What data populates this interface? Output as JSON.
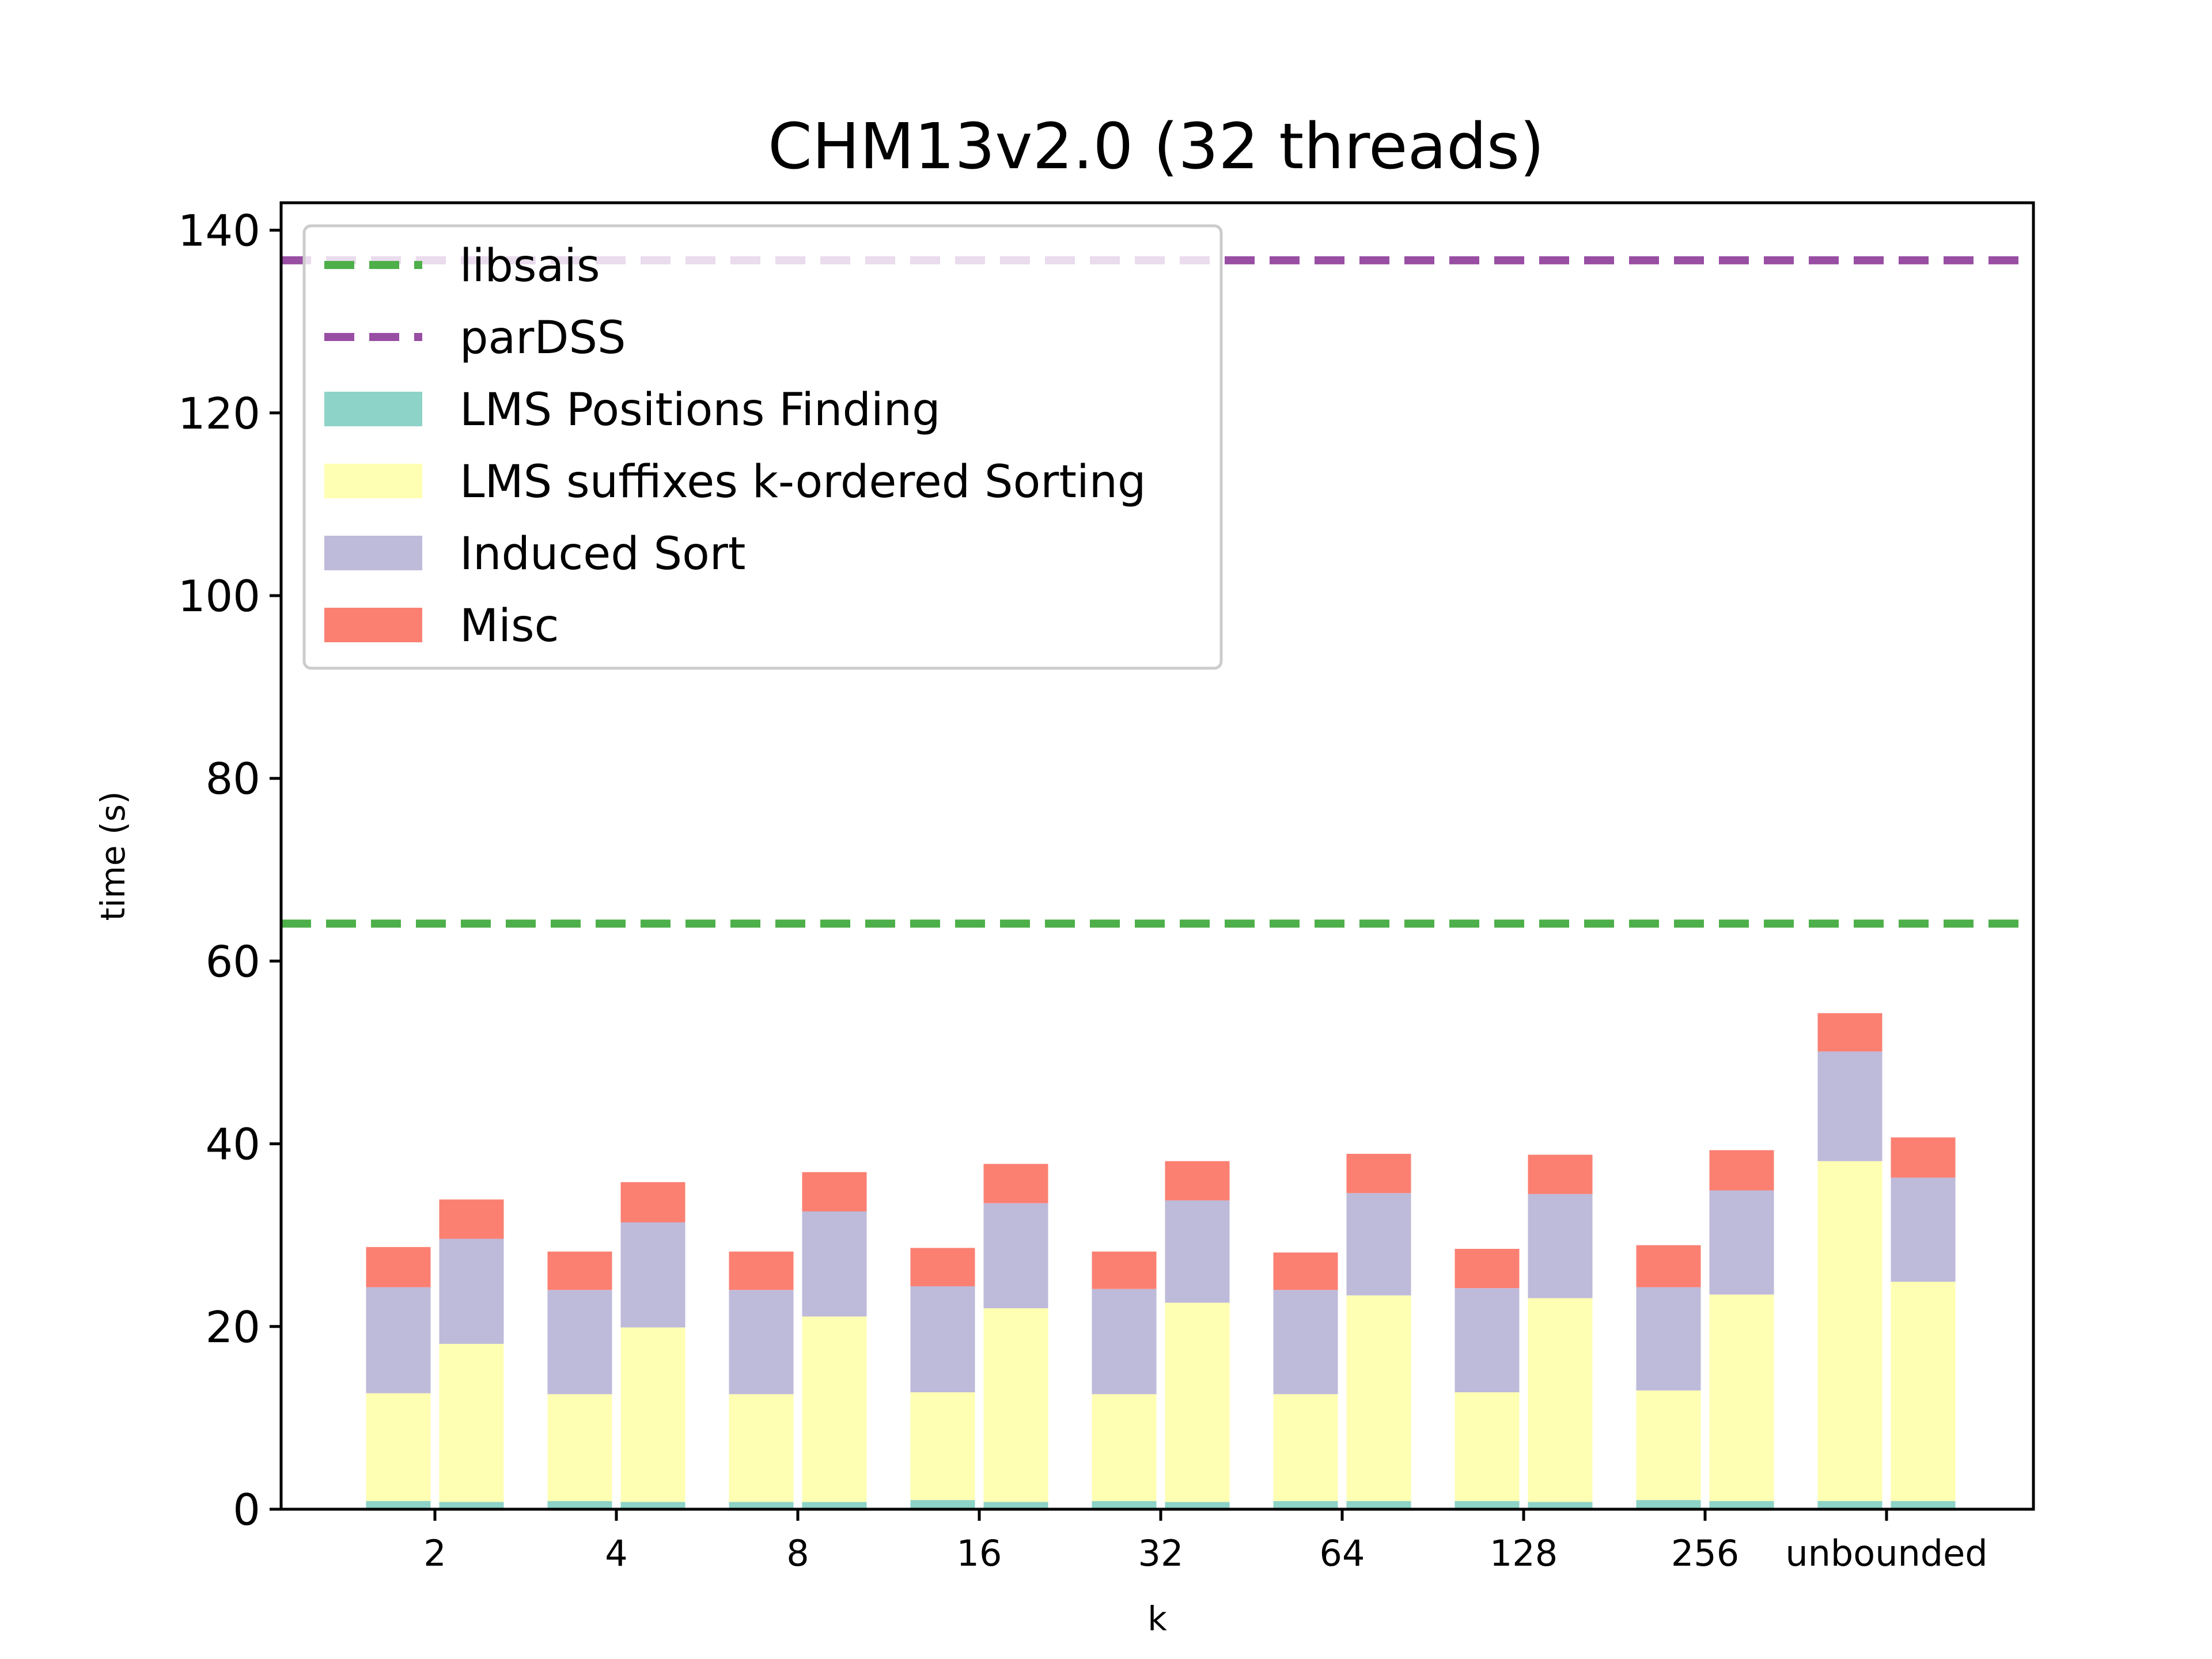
{
  "chart_data": {
    "type": "bar",
    "title": "CHM13v2.0 (32 threads)",
    "xlabel": "k",
    "ylabel": "time (s)",
    "ylim": [
      0,
      143
    ],
    "yticks": [
      0,
      20,
      40,
      60,
      80,
      100,
      120,
      140
    ],
    "categories": [
      "2",
      "4",
      "8",
      "16",
      "32",
      "64",
      "128",
      "256",
      "unbounded"
    ],
    "bars_per_category": 2,
    "stack_order": [
      "LMS Positions Finding",
      "LMS suffixes k-ordered Sorting",
      "Induced Sort",
      "Misc"
    ],
    "series": [
      {
        "name": "LMS Positions Finding",
        "color": "#8dd3c7",
        "values": [
          [
            0.9,
            0.8
          ],
          [
            0.9,
            0.8
          ],
          [
            0.8,
            0.8
          ],
          [
            1.0,
            0.8
          ],
          [
            0.9,
            0.8
          ],
          [
            0.9,
            0.9
          ],
          [
            0.9,
            0.8
          ],
          [
            1.0,
            0.9
          ],
          [
            0.9,
            0.9
          ]
        ]
      },
      {
        "name": "LMS suffixes k-ordered Sorting",
        "color": "#ffffb3",
        "values": [
          [
            11.8,
            17.3
          ],
          [
            11.7,
            19.1
          ],
          [
            11.8,
            20.3
          ],
          [
            11.8,
            21.2
          ],
          [
            11.7,
            21.8
          ],
          [
            11.7,
            22.5
          ],
          [
            11.9,
            22.3
          ],
          [
            12.0,
            22.6
          ],
          [
            37.2,
            24.0
          ]
        ]
      },
      {
        "name": "Induced Sort",
        "color": "#bebada",
        "values": [
          [
            11.6,
            11.5
          ],
          [
            11.4,
            11.5
          ],
          [
            11.4,
            11.5
          ],
          [
            11.6,
            11.5
          ],
          [
            11.5,
            11.2
          ],
          [
            11.4,
            11.2
          ],
          [
            11.4,
            11.4
          ],
          [
            11.3,
            11.4
          ],
          [
            12.0,
            11.4
          ]
        ]
      },
      {
        "name": "Misc",
        "color": "#fb8072",
        "values": [
          [
            4.4,
            4.3
          ],
          [
            4.2,
            4.4
          ],
          [
            4.2,
            4.3
          ],
          [
            4.2,
            4.3
          ],
          [
            4.1,
            4.3
          ],
          [
            4.1,
            4.3
          ],
          [
            4.3,
            4.3
          ],
          [
            4.6,
            4.4
          ],
          [
            4.2,
            4.4
          ]
        ]
      }
    ],
    "reference_lines": [
      {
        "name": "libsais",
        "value": 64.1,
        "color": "#4daf4a"
      },
      {
        "name": "parDSS",
        "value": 136.7,
        "color": "#984ea3"
      }
    ],
    "legend": {
      "placement": "top-left",
      "entries": [
        "libsais",
        "parDSS",
        "LMS Positions Finding",
        "LMS suffixes k-ordered Sorting",
        "Induced Sort",
        "Misc"
      ]
    },
    "grid": false
  }
}
